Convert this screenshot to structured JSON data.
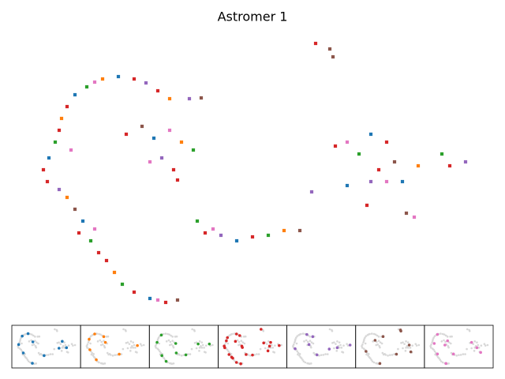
{
  "chart_data": {
    "type": "scatter",
    "title": "Astromer 1",
    "xlim": [
      0,
      600
    ],
    "ylim": [
      0,
      360
    ],
    "series": [
      {
        "color": "#1f77b4",
        "x": [
          130,
          75,
          42,
          85,
          170,
          175,
          280,
          450,
          490,
          420
        ],
        "y": [
          303,
          280,
          200,
          120,
          22,
          225,
          95,
          230,
          170,
          165
        ]
      },
      {
        "color": "#ff7f0e",
        "x": [
          110,
          58,
          65,
          125,
          195,
          210,
          340,
          510
        ],
        "y": [
          300,
          250,
          150,
          55,
          275,
          220,
          108,
          190
        ]
      },
      {
        "color": "#2ca02c",
        "x": [
          90,
          50,
          95,
          135,
          225,
          230,
          320,
          540,
          435
        ],
        "y": [
          290,
          220,
          95,
          40,
          210,
          120,
          102,
          205,
          205
        ]
      },
      {
        "color": "#d62728",
        "x": [
          65,
          55,
          35,
          40,
          80,
          105,
          115,
          150,
          190,
          150,
          180,
          140,
          200,
          205,
          240,
          300,
          405,
          470,
          460,
          550,
          445,
          380
        ],
        "y": [
          265,
          235,
          185,
          170,
          105,
          80,
          70,
          30,
          17,
          300,
          285,
          230,
          185,
          172,
          105,
          100,
          215,
          220,
          185,
          190,
          140,
          345
        ]
      },
      {
        "color": "#9467bd",
        "x": [
          55,
          165,
          220,
          185,
          260,
          450,
          570,
          375
        ],
        "y": [
          160,
          295,
          275,
          200,
          102,
          170,
          195,
          157
        ]
      },
      {
        "color": "#8c564b",
        "x": [
          75,
          205,
          235,
          160,
          360,
          480,
          495,
          398,
          402
        ],
        "y": [
          135,
          20,
          276,
          240,
          108,
          195,
          130,
          338,
          328
        ]
      },
      {
        "color": "#e377c2",
        "x": [
          100,
          70,
          100,
          180,
          195,
          170,
          250,
          420,
          470,
          505
        ],
        "y": [
          296,
          210,
          110,
          20,
          235,
          195,
          110,
          220,
          170,
          125
        ]
      }
    ]
  }
}
